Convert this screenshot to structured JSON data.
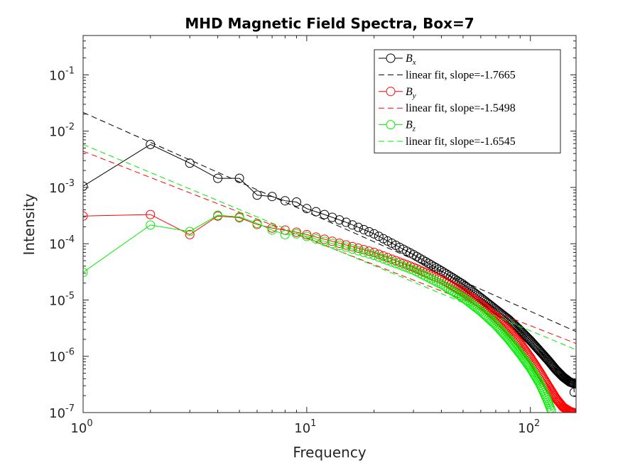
{
  "chart_data": {
    "type": "line",
    "title": "MHD Magnetic Field Spectra, Box=7",
    "xlabel": "Frequency",
    "ylabel": "Intensity",
    "xscale": "log",
    "yscale": "log",
    "xlim": [
      1,
      160
    ],
    "ylim": [
      1e-07,
      0.5
    ],
    "x_ticks": [
      {
        "value": 1,
        "base": "10",
        "exp": "0"
      },
      {
        "value": 10,
        "base": "10",
        "exp": "1"
      },
      {
        "value": 100,
        "base": "10",
        "exp": "2"
      }
    ],
    "y_ticks": [
      {
        "value": 1e-07,
        "base": "10",
        "exp": "-7"
      },
      {
        "value": 1e-06,
        "base": "10",
        "exp": "-6"
      },
      {
        "value": 1e-05,
        "base": "10",
        "exp": "-5"
      },
      {
        "value": 0.0001,
        "base": "10",
        "exp": "-4"
      },
      {
        "value": 0.001,
        "base": "10",
        "exp": "-3"
      },
      {
        "value": 0.01,
        "base": "10",
        "exp": "-2"
      },
      {
        "value": 0.1,
        "base": "10",
        "exp": "-1"
      }
    ],
    "grid": false,
    "legend_position": "top-right",
    "series": [
      {
        "name_base": "B",
        "name_sub": "x",
        "color": "#000000",
        "points": [
          [
            1,
            0.00105
          ],
          [
            2,
            0.0058
          ],
          [
            3,
            0.0027
          ],
          [
            4,
            0.00145
          ],
          [
            5,
            0.00145
          ],
          [
            6,
            0.00073
          ],
          [
            7,
            0.00069
          ],
          [
            8,
            0.00058
          ],
          [
            9,
            0.00055
          ],
          [
            10,
            0.00042
          ],
          [
            12,
            0.00033
          ],
          [
            15,
            0.00024
          ],
          [
            20,
            0.00015
          ],
          [
            30,
            6.4e-05
          ],
          [
            40,
            3.3e-05
          ],
          [
            50,
            1.9e-05
          ],
          [
            60,
            1.1e-05
          ],
          [
            70,
            6.8e-06
          ],
          [
            80,
            4.5e-06
          ],
          [
            90,
            2.9e-06
          ],
          [
            100,
            1.9e-06
          ],
          [
            110,
            1.25e-06
          ],
          [
            120,
            8.5e-07
          ],
          [
            130,
            5.8e-07
          ],
          [
            140,
            4.3e-07
          ],
          [
            150,
            3.5e-07
          ],
          [
            156,
            3.3e-07
          ],
          [
            157,
            2.3e-07
          ]
        ],
        "fit": {
          "label": "linear fit, slope=-1.7665",
          "slope": -1.7665,
          "intercept": 0.0215
        }
      },
      {
        "name_base": "B",
        "name_sub": "y",
        "color": "#ff0000",
        "points": [
          [
            1,
            0.00031
          ],
          [
            2,
            0.00033
          ],
          [
            3,
            0.000145
          ],
          [
            4,
            0.00031
          ],
          [
            5,
            0.00029
          ],
          [
            6,
            0.00022
          ],
          [
            7,
            0.00019
          ],
          [
            8,
            0.000175
          ],
          [
            9,
            0.00016
          ],
          [
            10,
            0.000145
          ],
          [
            12,
            0.00012
          ],
          [
            15,
            9.5e-05
          ],
          [
            20,
            7e-05
          ],
          [
            30,
            3.8e-05
          ],
          [
            40,
            2.3e-05
          ],
          [
            50,
            1.4e-05
          ],
          [
            60,
            8.5e-06
          ],
          [
            70,
            5e-06
          ],
          [
            80,
            2.9e-06
          ],
          [
            90,
            1.7e-06
          ],
          [
            100,
            9.5e-07
          ],
          [
            110,
            5.3e-07
          ],
          [
            120,
            3e-07
          ],
          [
            130,
            1.8e-07
          ],
          [
            140,
            1.25e-07
          ],
          [
            150,
            1.05e-07
          ],
          [
            156,
            1e-07
          ]
        ],
        "fit": {
          "label": "linear fit, slope=-1.5498",
          "slope": -1.5498,
          "intercept": 0.0044
        }
      },
      {
        "name_base": "B",
        "name_sub": "z",
        "color": "#00ee00",
        "points": [
          [
            1,
            3.1e-05
          ],
          [
            2,
            0.000215
          ],
          [
            3,
            0.000165
          ],
          [
            4,
            0.00032
          ],
          [
            5,
            0.0003
          ],
          [
            6,
            0.00023
          ],
          [
            7,
            0.000175
          ],
          [
            8,
            0.000145
          ],
          [
            9,
            0.00015
          ],
          [
            10,
            0.000135
          ],
          [
            12,
            0.00011
          ],
          [
            15,
            8.7e-05
          ],
          [
            20,
            6.2e-05
          ],
          [
            30,
            3.4e-05
          ],
          [
            40,
            1.9e-05
          ],
          [
            50,
            1.1e-05
          ],
          [
            60,
            6.3e-06
          ],
          [
            70,
            3.6e-06
          ],
          [
            80,
            2e-06
          ],
          [
            90,
            1.1e-06
          ],
          [
            100,
            6.2e-07
          ],
          [
            110,
            3.3e-07
          ],
          [
            118,
            1.8e-07
          ],
          [
            124,
            1.1e-07
          ]
        ],
        "fit": {
          "label": "linear fit, slope=-1.6545",
          "slope": -1.6545,
          "intercept": 0.0058
        }
      }
    ]
  }
}
